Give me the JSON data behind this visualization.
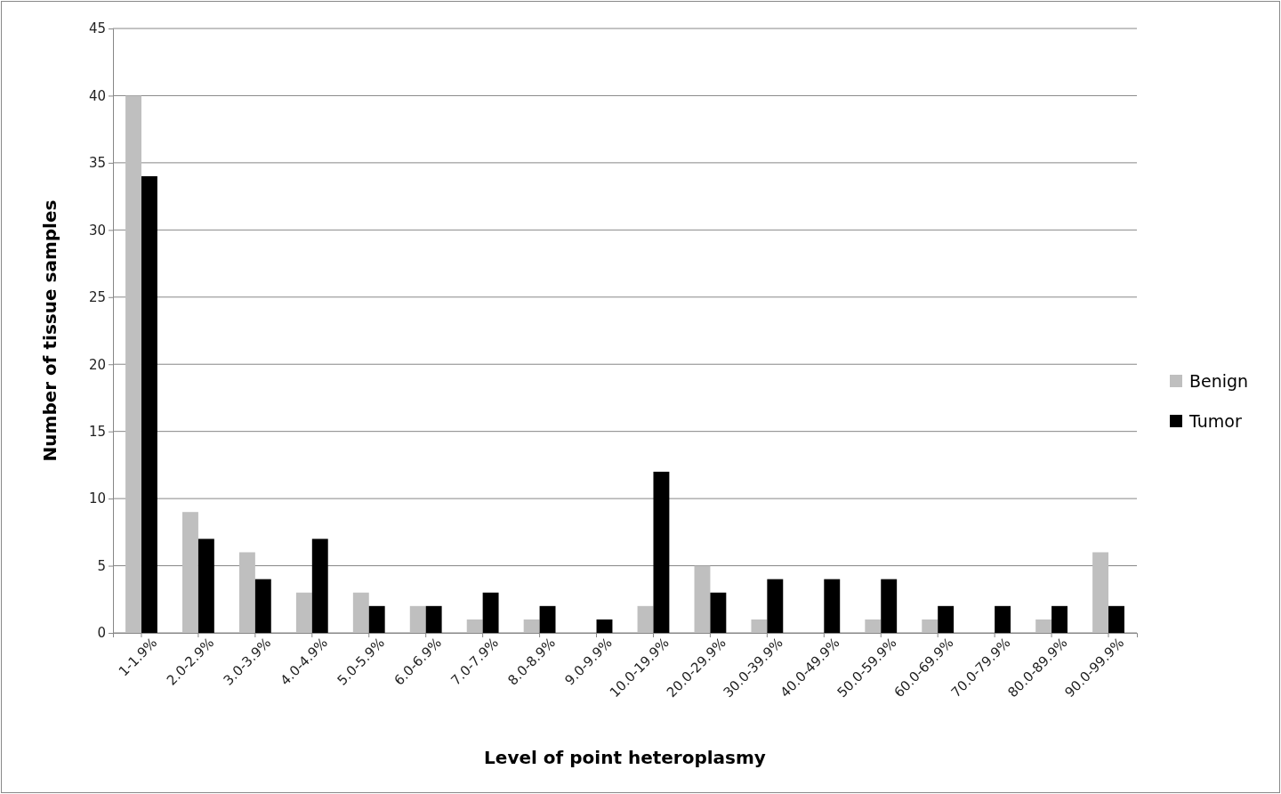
{
  "chart_data": {
    "type": "bar",
    "xlabel": "Level of point heteroplasmy",
    "ylabel": "Number of tissue samples",
    "categories": [
      "1-1.9%",
      "2.0-2.9%",
      "3.0-3.9%",
      "4.0-4.9%",
      "5.0-5.9%",
      "6.0-6.9%",
      "7.0-7.9%",
      "8.0-8.9%",
      "9.0-9.9%",
      "10.0-19.9%",
      "20.0-29.9%",
      "30.0-39.9%",
      "40.0-49.9%",
      "50.0-59.9%",
      "60.0-69.9%",
      "70.0-79.9%",
      "80.0-89.9%",
      "90.0-99.9%"
    ],
    "series": [
      {
        "name": "Benign",
        "color": "#bfbfbf",
        "values": [
          40,
          9,
          6,
          3,
          3,
          2,
          1,
          1,
          0,
          2,
          5,
          1,
          0,
          1,
          1,
          0,
          1,
          6
        ]
      },
      {
        "name": "Tumor",
        "color": "#000000",
        "values": [
          34,
          7,
          4,
          7,
          2,
          2,
          3,
          2,
          1,
          12,
          3,
          4,
          4,
          4,
          2,
          2,
          2,
          2
        ]
      }
    ],
    "ylim": [
      0,
      45
    ],
    "yticks": [
      0,
      5,
      10,
      15,
      20,
      25,
      30,
      35,
      40,
      45
    ],
    "grid": "y",
    "legend": "right"
  }
}
